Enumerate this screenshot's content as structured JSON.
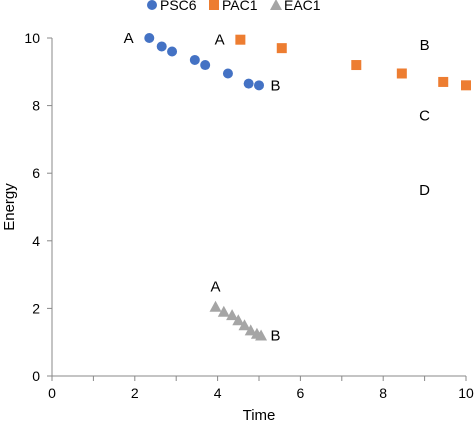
{
  "chart_data": {
    "type": "scatter",
    "xlabel": "Time",
    "ylabel": "Energy",
    "xlim": [
      0,
      10
    ],
    "ylim": [
      0,
      10
    ],
    "xticks": [
      0,
      2,
      4,
      6,
      8,
      10
    ],
    "yticks": [
      0,
      2,
      4,
      6,
      8,
      10
    ],
    "grid": false,
    "legend_position": "top",
    "series": [
      {
        "name": "PSC6",
        "marker": "circle",
        "color": "#4472C4",
        "points": [
          [
            2.35,
            10.0
          ],
          [
            2.65,
            9.75
          ],
          [
            2.9,
            9.6
          ],
          [
            3.45,
            9.35
          ],
          [
            3.7,
            9.2
          ],
          [
            4.25,
            8.95
          ],
          [
            4.75,
            8.65
          ],
          [
            5.0,
            8.6
          ]
        ]
      },
      {
        "name": "PAC1",
        "marker": "square",
        "color": "#ED7D31",
        "points": [
          [
            4.55,
            9.95
          ],
          [
            5.55,
            9.7
          ],
          [
            7.35,
            9.2
          ],
          [
            8.45,
            8.95
          ],
          [
            9.45,
            8.7
          ],
          [
            10.0,
            8.6
          ]
        ]
      },
      {
        "name": "EAC1",
        "marker": "triangle",
        "color": "#A5A5A5",
        "points": [
          [
            3.95,
            2.05
          ],
          [
            4.15,
            1.9
          ],
          [
            4.35,
            1.8
          ],
          [
            4.5,
            1.65
          ],
          [
            4.65,
            1.5
          ],
          [
            4.8,
            1.35
          ],
          [
            4.95,
            1.25
          ],
          [
            5.05,
            1.2
          ]
        ]
      }
    ],
    "annotations": [
      {
        "text": "A",
        "x": 1.85,
        "y": 10.0
      },
      {
        "text": "B",
        "x": 5.4,
        "y": 8.6
      },
      {
        "text": "A",
        "x": 4.05,
        "y": 9.95
      },
      {
        "text": "B",
        "x": 9.0,
        "y": 9.8
      },
      {
        "text": "C",
        "x": 9.0,
        "y": 7.7
      },
      {
        "text": "D",
        "x": 9.0,
        "y": 5.5
      },
      {
        "text": "A",
        "x": 3.95,
        "y": 2.65
      },
      {
        "text": "B",
        "x": 5.4,
        "y": 1.2
      }
    ]
  }
}
